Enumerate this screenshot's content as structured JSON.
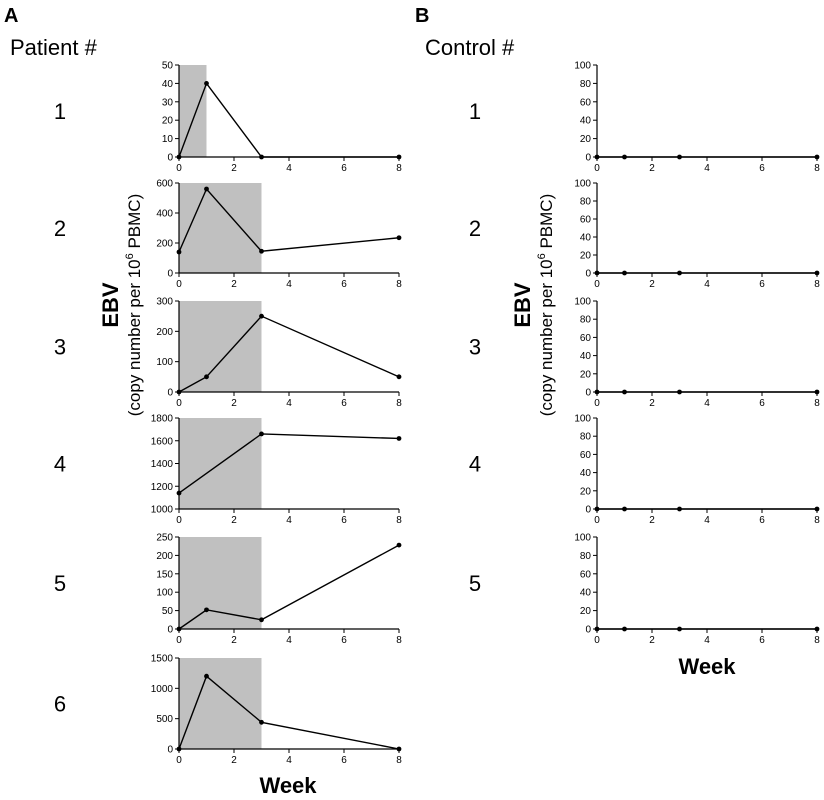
{
  "panels": [
    {
      "letter": "A",
      "group_title": "Patient #"
    },
    {
      "letter": "B",
      "group_title": "Control #"
    }
  ],
  "axis_labels": {
    "x": "Week",
    "y_main": "EBV",
    "y_sub_prefix": "(copy number per 10",
    "y_sub_superscript": "6",
    "y_sub_suffix": " PBMC)"
  },
  "colors": {
    "shade": "#c0c0c0",
    "line": "#000000"
  },
  "chart_data": [
    {
      "panel": "A",
      "label": "1",
      "type": "line",
      "xlabel": "Week",
      "ylabel": "EBV (copy number per 10^6 PBMC)",
      "x": [
        0,
        1,
        3,
        8
      ],
      "y": [
        0,
        40,
        0,
        0
      ],
      "xlim": [
        0,
        8
      ],
      "ylim": [
        0,
        50
      ],
      "xticks": [
        0,
        2,
        4,
        6,
        8
      ],
      "yticks": [
        0,
        10,
        20,
        30,
        40,
        50
      ],
      "shaded_x": [
        0,
        1
      ]
    },
    {
      "panel": "A",
      "label": "2",
      "type": "line",
      "xlabel": "Week",
      "ylabel": "EBV (copy number per 10^6 PBMC)",
      "x": [
        0,
        1,
        3,
        8
      ],
      "y": [
        140,
        560,
        145,
        235
      ],
      "xlim": [
        0,
        8
      ],
      "ylim": [
        0,
        600
      ],
      "xticks": [
        0,
        2,
        4,
        6,
        8
      ],
      "yticks": [
        0,
        200,
        400,
        600
      ],
      "shaded_x": [
        0,
        3
      ]
    },
    {
      "panel": "A",
      "label": "3",
      "type": "line",
      "xlabel": "Week",
      "ylabel": "EBV (copy number per 10^6 PBMC)",
      "x": [
        0,
        1,
        3,
        8
      ],
      "y": [
        0,
        50,
        250,
        50
      ],
      "xlim": [
        0,
        8
      ],
      "ylim": [
        0,
        300
      ],
      "xticks": [
        0,
        2,
        4,
        6,
        8
      ],
      "yticks": [
        0,
        100,
        200,
        300
      ],
      "shaded_x": [
        0,
        3
      ]
    },
    {
      "panel": "A",
      "label": "4",
      "type": "line",
      "xlabel": "Week",
      "ylabel": "EBV (copy number per 10^6 PBMC)",
      "x": [
        0,
        3,
        8
      ],
      "y": [
        1140,
        1660,
        1620
      ],
      "xlim": [
        0,
        8
      ],
      "ylim": [
        1000,
        1800
      ],
      "xticks": [
        0,
        2,
        4,
        6,
        8
      ],
      "yticks": [
        1000,
        1200,
        1400,
        1600,
        1800
      ],
      "shaded_x": [
        0,
        3
      ]
    },
    {
      "panel": "A",
      "label": "5",
      "type": "line",
      "xlabel": "Week",
      "ylabel": "EBV (copy number per 10^6 PBMC)",
      "x": [
        0,
        1,
        3,
        8
      ],
      "y": [
        0,
        52,
        25,
        228
      ],
      "xlim": [
        0,
        8
      ],
      "ylim": [
        0,
        250
      ],
      "xticks": [
        0,
        2,
        4,
        6,
        8
      ],
      "yticks": [
        0,
        50,
        100,
        150,
        200,
        250
      ],
      "shaded_x": [
        0,
        3
      ]
    },
    {
      "panel": "A",
      "label": "6",
      "type": "line",
      "xlabel": "Week",
      "ylabel": "EBV (copy number per 10^6 PBMC)",
      "x": [
        0,
        1,
        3,
        8
      ],
      "y": [
        0,
        1200,
        440,
        0
      ],
      "xlim": [
        0,
        8
      ],
      "ylim": [
        0,
        1500
      ],
      "xticks": [
        0,
        2,
        4,
        6,
        8
      ],
      "yticks": [
        0,
        500,
        1000,
        1500
      ],
      "shaded_x": [
        0,
        3
      ]
    },
    {
      "panel": "B",
      "label": "1",
      "type": "line",
      "xlabel": "Week",
      "ylabel": "EBV (copy number per 10^6 PBMC)",
      "x": [
        0,
        1,
        3,
        8
      ],
      "y": [
        0,
        0,
        0,
        0
      ],
      "xlim": [
        0,
        8
      ],
      "ylim": [
        0,
        100
      ],
      "xticks": [
        0,
        2,
        4,
        6,
        8
      ],
      "yticks": [
        0,
        20,
        40,
        60,
        80,
        100
      ]
    },
    {
      "panel": "B",
      "label": "2",
      "type": "line",
      "xlabel": "Week",
      "ylabel": "EBV (copy number per 10^6 PBMC)",
      "x": [
        0,
        1,
        3,
        8
      ],
      "y": [
        0,
        0,
        0,
        0
      ],
      "xlim": [
        0,
        8
      ],
      "ylim": [
        0,
        100
      ],
      "xticks": [
        0,
        2,
        4,
        6,
        8
      ],
      "yticks": [
        0,
        20,
        40,
        60,
        80,
        100
      ]
    },
    {
      "panel": "B",
      "label": "3",
      "type": "line",
      "xlabel": "Week",
      "ylabel": "EBV (copy number per 10^6 PBMC)",
      "x": [
        0,
        1,
        3,
        8
      ],
      "y": [
        0,
        0,
        0,
        0
      ],
      "xlim": [
        0,
        8
      ],
      "ylim": [
        0,
        100
      ],
      "xticks": [
        0,
        2,
        4,
        6,
        8
      ],
      "yticks": [
        0,
        20,
        40,
        60,
        80,
        100
      ]
    },
    {
      "panel": "B",
      "label": "4",
      "type": "line",
      "xlabel": "Week",
      "ylabel": "EBV (copy number per 10^6 PBMC)",
      "x": [
        0,
        1,
        3,
        8
      ],
      "y": [
        0,
        0,
        0,
        0
      ],
      "xlim": [
        0,
        8
      ],
      "ylim": [
        0,
        100
      ],
      "xticks": [
        0,
        2,
        4,
        6,
        8
      ],
      "yticks": [
        0,
        20,
        40,
        60,
        80,
        100
      ]
    },
    {
      "panel": "B",
      "label": "5",
      "type": "line",
      "xlabel": "Week",
      "ylabel": "EBV (copy number per 10^6 PBMC)",
      "x": [
        0,
        1,
        3,
        8
      ],
      "y": [
        0,
        0,
        0,
        0
      ],
      "xlim": [
        0,
        8
      ],
      "ylim": [
        0,
        100
      ],
      "xticks": [
        0,
        2,
        4,
        6,
        8
      ],
      "yticks": [
        0,
        20,
        40,
        60,
        80,
        100
      ]
    }
  ]
}
